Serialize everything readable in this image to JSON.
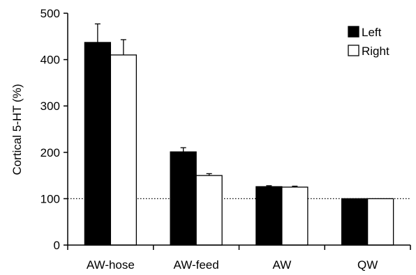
{
  "chart_data": {
    "type": "bar",
    "title": "",
    "xlabel": "",
    "ylabel": "Cortical 5-HT (%)",
    "categories": [
      "AW-hose",
      "AW-feed",
      "AW",
      "QW"
    ],
    "ylim": [
      0,
      500
    ],
    "yticks": [
      0,
      100,
      200,
      300,
      400,
      500
    ],
    "grid": false,
    "legend_position": "top-right",
    "reference_line": {
      "y": 100,
      "style": "dotted"
    },
    "series": [
      {
        "name": "Left",
        "fill": "#000000",
        "values": [
          437,
          201,
          126,
          100
        ],
        "errors": [
          40,
          9,
          2,
          0
        ]
      },
      {
        "name": "Right",
        "fill": "#ffffff",
        "values": [
          410,
          150,
          125,
          100
        ],
        "errors": [
          33,
          4,
          2,
          0
        ]
      }
    ]
  }
}
